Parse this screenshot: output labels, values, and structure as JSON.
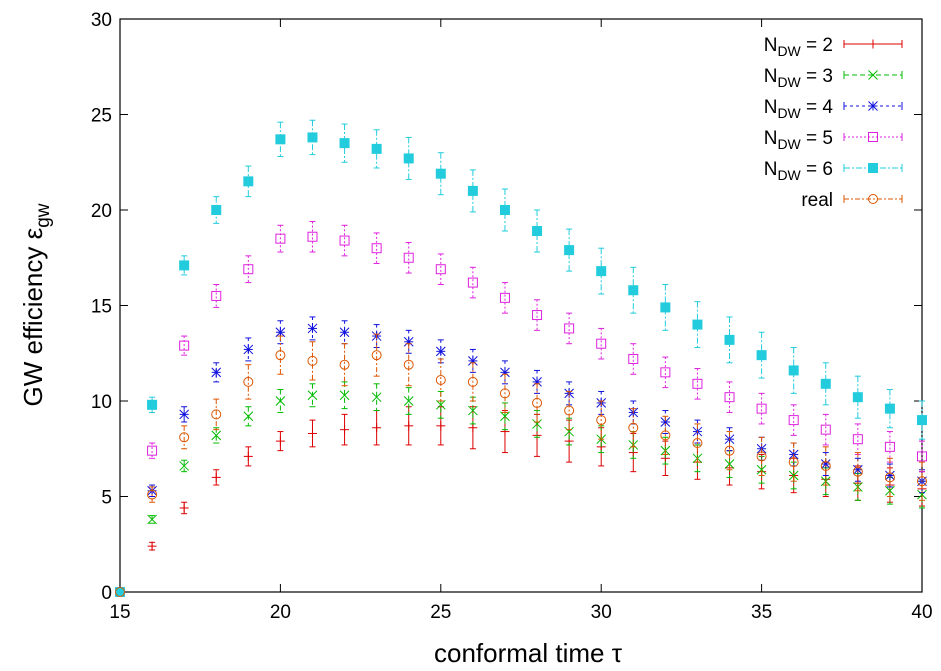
{
  "chart_data": {
    "type": "scatter",
    "title": "",
    "xlabel": "conformal time τ",
    "ylabel_main": "GW efficiency ε",
    "ylabel_sub": "gw",
    "xlim": [
      15,
      40
    ],
    "ylim": [
      0,
      30
    ],
    "x_ticks": [
      "15",
      "20",
      "25",
      "30",
      "35",
      "40"
    ],
    "y_ticks": [
      "0",
      "5",
      "10",
      "15",
      "20",
      "25",
      "30"
    ],
    "grid": false,
    "legend_position": "top-right",
    "error_bars": true,
    "series": [
      {
        "name": "2",
        "label_main": "N",
        "label_sub": "DW",
        "label_rest": " = 2",
        "color": "#dd0000",
        "marker": "plus",
        "dash": "",
        "x": [
          15,
          16,
          17,
          18,
          19,
          20,
          21,
          22,
          23,
          24,
          25,
          26,
          27,
          28,
          29,
          30,
          31,
          32,
          33,
          34,
          35,
          36,
          37,
          38,
          39,
          40
        ],
        "y": [
          0,
          2.4,
          4.4,
          6.0,
          7.1,
          7.9,
          8.3,
          8.5,
          8.6,
          8.7,
          8.7,
          8.6,
          8.4,
          8.2,
          7.9,
          7.6,
          7.3,
          7.0,
          6.8,
          6.5,
          6.3,
          6.1,
          5.9,
          5.7,
          5.6,
          5.4
        ],
        "err": [
          0,
          0.2,
          0.3,
          0.4,
          0.5,
          0.5,
          0.7,
          0.8,
          0.9,
          1.0,
          1.0,
          1.1,
          1.1,
          1.1,
          1.1,
          1.0,
          1.0,
          0.9,
          0.9,
          0.9,
          0.9,
          0.9,
          0.9,
          0.9,
          0.9,
          0.9
        ]
      },
      {
        "name": "3",
        "label_main": "N",
        "label_sub": "DW",
        "label_rest": " = 3",
        "color": "#00bb00",
        "marker": "cross",
        "dash": "5,3",
        "x": [
          15,
          16,
          17,
          18,
          19,
          20,
          21,
          22,
          23,
          24,
          25,
          26,
          27,
          28,
          29,
          30,
          31,
          32,
          33,
          34,
          35,
          36,
          37,
          38,
          39,
          40
        ],
        "y": [
          0,
          3.8,
          6.6,
          8.2,
          9.2,
          10.0,
          10.3,
          10.3,
          10.2,
          10.0,
          9.8,
          9.5,
          9.2,
          8.8,
          8.4,
          8.0,
          7.7,
          7.4,
          7.0,
          6.7,
          6.4,
          6.1,
          5.8,
          5.5,
          5.3,
          5.1
        ],
        "err": [
          0,
          0.2,
          0.3,
          0.4,
          0.5,
          0.6,
          0.6,
          0.7,
          0.7,
          0.7,
          0.7,
          0.7,
          0.7,
          0.7,
          0.7,
          0.7,
          0.7,
          0.7,
          0.7,
          0.7,
          0.7,
          0.7,
          0.7,
          0.7,
          0.7,
          0.7
        ]
      },
      {
        "name": "4",
        "label_main": "N",
        "label_sub": "DW",
        "label_rest": " = 4",
        "color": "#1010dd",
        "marker": "star",
        "dash": "3,3",
        "x": [
          15,
          16,
          17,
          18,
          19,
          20,
          21,
          22,
          23,
          24,
          25,
          26,
          27,
          28,
          29,
          30,
          31,
          32,
          33,
          34,
          35,
          36,
          37,
          38,
          39,
          40
        ],
        "y": [
          0,
          5.3,
          9.3,
          11.5,
          12.7,
          13.6,
          13.8,
          13.6,
          13.4,
          13.1,
          12.6,
          12.1,
          11.5,
          11.0,
          10.4,
          9.9,
          9.4,
          8.9,
          8.4,
          8.0,
          7.5,
          7.2,
          6.7,
          6.4,
          6.1,
          5.8
        ],
        "err": [
          0,
          0.3,
          0.4,
          0.5,
          0.6,
          0.6,
          0.6,
          0.6,
          0.6,
          0.6,
          0.6,
          0.6,
          0.6,
          0.6,
          0.6,
          0.6,
          0.6,
          0.6,
          0.6,
          0.6,
          0.6,
          0.6,
          0.6,
          0.6,
          0.6,
          0.6
        ]
      },
      {
        "name": "5",
        "label_main": "N",
        "label_sub": "DW",
        "label_rest": " = 5",
        "color": "#dd22dd",
        "marker": "square-open",
        "dash": "2,2",
        "x": [
          15,
          16,
          17,
          18,
          19,
          20,
          21,
          22,
          23,
          24,
          25,
          26,
          27,
          28,
          29,
          30,
          31,
          32,
          33,
          34,
          35,
          36,
          37,
          38,
          39,
          40
        ],
        "y": [
          0,
          7.4,
          12.9,
          15.5,
          16.9,
          18.5,
          18.6,
          18.4,
          18.0,
          17.5,
          16.9,
          16.2,
          15.4,
          14.5,
          13.8,
          13.0,
          12.2,
          11.5,
          10.9,
          10.2,
          9.6,
          9.0,
          8.5,
          8.0,
          7.6,
          7.1
        ],
        "err": [
          0,
          0.4,
          0.5,
          0.6,
          0.7,
          0.7,
          0.8,
          0.8,
          0.8,
          0.8,
          0.8,
          0.8,
          0.8,
          0.8,
          0.8,
          0.8,
          0.8,
          0.8,
          0.8,
          0.8,
          0.8,
          0.8,
          0.8,
          0.8,
          0.8,
          0.8
        ]
      },
      {
        "name": "6",
        "label_main": "N",
        "label_sub": "DW",
        "label_rest": " = 6",
        "color": "#22ccdd",
        "marker": "square-filled",
        "dash": "6,2,2,2",
        "x": [
          15,
          16,
          17,
          18,
          19,
          20,
          21,
          22,
          23,
          24,
          25,
          26,
          27,
          28,
          29,
          30,
          31,
          32,
          33,
          34,
          35,
          36,
          37,
          38,
          39,
          40
        ],
        "y": [
          0,
          9.8,
          17.1,
          20.0,
          21.5,
          23.7,
          23.8,
          23.5,
          23.2,
          22.7,
          21.9,
          21.0,
          20.0,
          18.9,
          17.9,
          16.8,
          15.8,
          14.9,
          14.0,
          13.2,
          12.4,
          11.6,
          10.9,
          10.2,
          9.6,
          9.0
        ],
        "err": [
          0,
          0.4,
          0.5,
          0.7,
          0.8,
          0.9,
          0.9,
          1.0,
          1.0,
          1.1,
          1.1,
          1.1,
          1.1,
          1.1,
          1.1,
          1.2,
          1.2,
          1.2,
          1.2,
          1.2,
          1.2,
          1.2,
          1.1,
          1.1,
          1.0,
          1.0
        ]
      },
      {
        "name": "real",
        "label_main": "real",
        "label_sub": "",
        "label_rest": "",
        "color": "#dd5500",
        "marker": "circle-open",
        "dash": "5,2,2,2",
        "x": [
          15,
          16,
          17,
          18,
          19,
          20,
          21,
          22,
          23,
          24,
          25,
          26,
          27,
          28,
          29,
          30,
          31,
          32,
          33,
          34,
          35,
          36,
          37,
          38,
          39,
          40
        ],
        "y": [
          0,
          5.1,
          8.1,
          9.3,
          11.0,
          12.4,
          12.1,
          11.9,
          12.4,
          11.9,
          11.1,
          11.0,
          10.4,
          9.9,
          9.5,
          9.0,
          8.6,
          8.2,
          7.8,
          7.4,
          7.1,
          6.8,
          6.6,
          6.3,
          6.0,
          5.8
        ],
        "err": [
          0,
          0.4,
          0.6,
          0.8,
          0.9,
          1.0,
          1.0,
          1.1,
          1.1,
          1.1,
          1.1,
          1.0,
          1.0,
          1.0,
          1.0,
          1.0,
          1.0,
          1.0,
          1.0,
          1.0,
          1.0,
          1.0,
          1.0,
          1.0,
          1.0,
          1.0
        ]
      }
    ]
  }
}
